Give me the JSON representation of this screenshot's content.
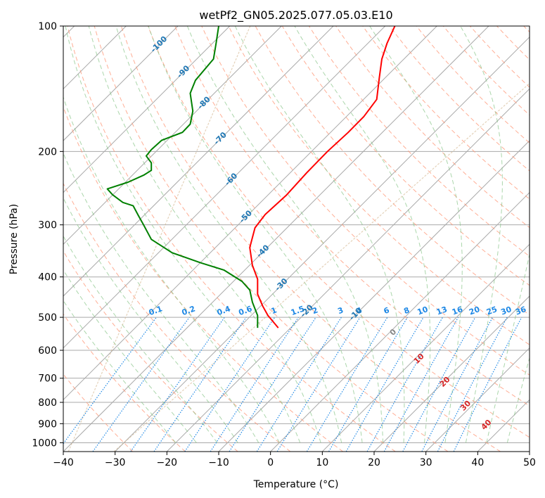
{
  "chart_data": {
    "type": "line",
    "title": "wetPf2_GN05.2025.077.05.03.E10",
    "xlabel": "Temperature (°C)",
    "ylabel": "Pressure (hPa)",
    "xlim": [
      -40,
      50
    ],
    "ylim": [
      1050,
      100
    ],
    "y_scale": "log",
    "grid": true,
    "x_ticks": [
      -40,
      -30,
      -20,
      -10,
      0,
      10,
      20,
      30,
      40,
      50
    ],
    "y_ticks": [
      100,
      200,
      300,
      400,
      500,
      600,
      700,
      800,
      900,
      1000
    ],
    "series": [
      {
        "color": "#ff0000",
        "points": [
          [
            24,
            100
          ],
          [
            22.5,
            110
          ],
          [
            21.5,
            120
          ],
          [
            21,
            133
          ],
          [
            20.5,
            150
          ],
          [
            18,
            165
          ],
          [
            15,
            180
          ],
          [
            11,
            200
          ],
          [
            7,
            225
          ],
          [
            3,
            255
          ],
          [
            -1,
            283
          ],
          [
            -3,
            305
          ],
          [
            -4,
            340
          ],
          [
            -3.5,
            375
          ],
          [
            -2.5,
            405
          ],
          [
            -2.5,
            440
          ],
          [
            -1.5,
            470
          ],
          [
            -0.5,
            495
          ],
          [
            1.5,
            530
          ]
        ]
      },
      {
        "color": "#008000",
        "points": [
          [
            -10,
            100
          ],
          [
            -10.5,
            110
          ],
          [
            -11,
            120
          ],
          [
            -14.5,
            135
          ],
          [
            -15.5,
            145
          ],
          [
            -15,
            160
          ],
          [
            -15.5,
            172
          ],
          [
            -17,
            180
          ],
          [
            -21,
            188
          ],
          [
            -23,
            198
          ],
          [
            -24,
            205
          ],
          [
            -23,
            213
          ],
          [
            -23,
            222
          ],
          [
            -24.5,
            228
          ],
          [
            -27.5,
            237
          ],
          [
            -31.5,
            246
          ],
          [
            -30.5,
            254
          ],
          [
            -28.5,
            265
          ],
          [
            -26.5,
            270
          ],
          [
            -25.5,
            285
          ],
          [
            -24.5,
            300
          ],
          [
            -23,
            325
          ],
          [
            -19,
            350
          ],
          [
            -13.5,
            370
          ],
          [
            -9,
            385
          ],
          [
            -5.5,
            410
          ],
          [
            -4,
            430
          ],
          [
            -3.5,
            460
          ],
          [
            -2.5,
            495
          ],
          [
            -2.5,
            530
          ]
        ]
      }
    ],
    "dry_adiabat_labels": [
      "-100",
      "-90",
      "-80",
      "-70",
      "-60",
      "-50",
      "-40",
      "-30",
      "-20",
      "-10"
    ],
    "mixing_ratio_labels": [
      "0.1",
      "0.2",
      "0.4",
      "0.6",
      "1",
      "1.5",
      "2",
      "3",
      "4",
      "6",
      "8",
      "10",
      "13",
      "16",
      "20",
      "25",
      "30",
      "36"
    ],
    "moist_adiabat_labels": [
      "0",
      "10",
      "20",
      "30",
      "40"
    ],
    "colors": {
      "temperature": "#ff0000",
      "dewpoint": "#008000",
      "isotherms": "#a9a9a9",
      "dry_adiabats": "#ff9a7a",
      "moist_adiabats": "#88c488",
      "mixing_ratio": "#1e88e5",
      "dry_label": "#1f77b4",
      "moist_label": "#d62728",
      "zero_label": "#888888",
      "lcl_curve": "#d2b48c"
    }
  }
}
